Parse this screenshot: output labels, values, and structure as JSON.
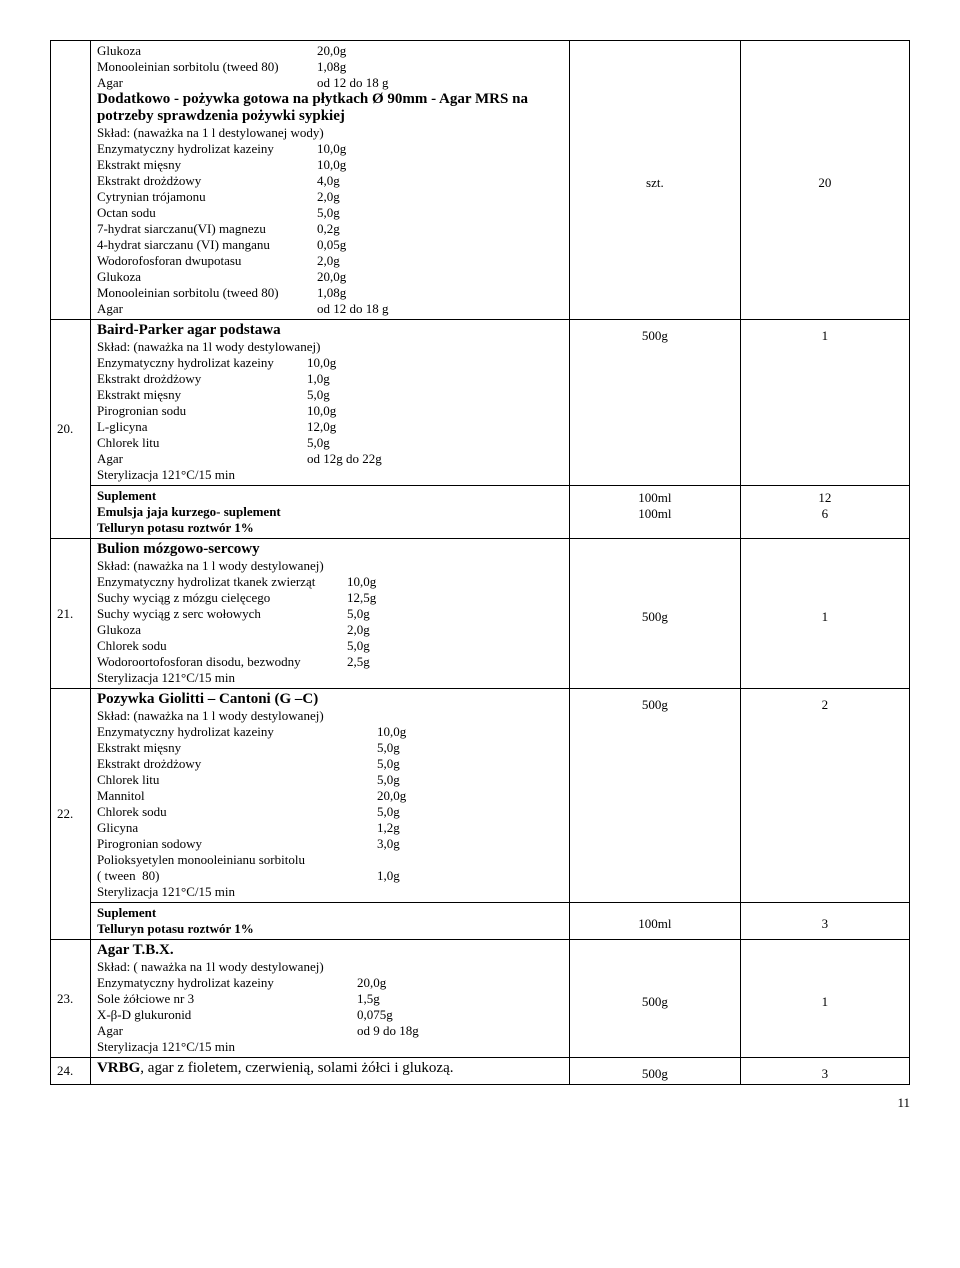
{
  "row_top": {
    "lines": [
      [
        "Glukoza",
        "20,0g"
      ],
      [
        "Monooleinian sorbitolu (tweed 80)",
        "1,08g"
      ],
      [
        "Agar",
        "od 12 do 18 g"
      ]
    ],
    "title": "Dodatkowo - pożywka gotowa na płytkach Ø 90mm - Agar MRS na potrzeby sprawdzenia pożywki sypkiej",
    "sub": "Skład: (naważka  na 1 l destylowanej wody)",
    "lines2": [
      [
        "Enzymatyczny hydrolizat kazeiny",
        "10,0g"
      ],
      [
        "Ekstrakt mięsny",
        "10,0g"
      ],
      [
        "Ekstrakt drożdżowy",
        "4,0g"
      ],
      [
        "Cytrynian trójamonu",
        "2,0g"
      ],
      [
        "Octan sodu",
        "5,0g"
      ],
      [
        "7-hydrat siarczanu(VI) magnezu",
        "0,2g"
      ],
      [
        "4-hydrat siarczanu (VI) manganu",
        "0,05g"
      ],
      [
        "Wodorofosforan dwupotasu",
        "2,0g"
      ],
      [
        "Glukoza",
        "20,0g"
      ],
      [
        "Monooleinian sorbitolu (tweed 80)",
        "1,08g"
      ],
      [
        "Agar",
        "od 12 do 18 g"
      ]
    ],
    "q1": "szt.",
    "q2": "20"
  },
  "r20": {
    "num": "20.",
    "title": "Baird-Parker agar podstawa",
    "sub": "Skład: (naważka na 1l wody destylowanej)",
    "lines": [
      [
        "Enzymatyczny hydrolizat kazeiny",
        "10,0g"
      ],
      [
        "Ekstrakt drożdżowy",
        "1,0g"
      ],
      [
        "Ekstrakt mięsny",
        "5,0g"
      ],
      [
        "Pirogronian sodu",
        "10,0g"
      ],
      [
        "L-glicyna",
        "12,0g"
      ],
      [
        "Chlorek litu",
        "5,0g"
      ],
      [
        "Agar",
        "od 12g do 22g"
      ]
    ],
    "extra": "Sterylizacja 121°C/15 min",
    "q1": "500g",
    "q2": "1",
    "supp_title": "Suplement",
    "supp_lines": [
      "Emulsja jaja kurzego- suplement",
      "Telluryn potasu roztwór 1%"
    ],
    "supp_q1a": "100ml",
    "supp_q1b": "100ml",
    "supp_q2a": "12",
    "supp_q2b": "6"
  },
  "r21": {
    "num": "21.",
    "title": "Bulion mózgowo-sercowy",
    "sub": "Skład: (naważka na 1 l wody destylowanej)",
    "lines": [
      [
        "Enzymatyczny hydrolizat tkanek zwierząt",
        "10,0g"
      ],
      [
        "Suchy wyciąg z mózgu cielęcego",
        "12,5g"
      ],
      [
        "Suchy wyciąg z serc wołowych",
        "5,0g"
      ],
      [
        "Glukoza",
        "2,0g"
      ],
      [
        "Chlorek sodu",
        "5,0g"
      ],
      [
        "Wodoroortofosforan disodu, bezwodny",
        "2,5g"
      ]
    ],
    "extra": " Sterylizacja 121°C/15 min",
    "q1": "500g",
    "q2": "1"
  },
  "r22": {
    "num": "22.",
    "title": "Pozywka Giolitti – Cantoni (G –C)",
    "sub": "Skład: (naważka na 1 l wody destylowanej)",
    "lines": [
      [
        "Enzymatyczny hydrolizat kazeiny",
        "10,0g"
      ],
      [
        "Ekstrakt mięsny",
        "5,0g"
      ],
      [
        "Ekstrakt drożdżowy",
        "5,0g"
      ],
      [
        "Chlorek litu",
        "5,0g"
      ],
      [
        "Mannitol",
        "20,0g"
      ],
      [
        "Chlorek sodu",
        "5,0g"
      ],
      [
        "Glicyna",
        "1,2g"
      ],
      [
        "Pirogronian sodowy",
        "3,0g"
      ]
    ],
    "tail1": "Polioksyetylen monooleinianu sorbitolu",
    "tail2_label": "( tween  80)",
    "tail2_value": "1,0g",
    "extra": "Sterylizacja 121°C/15 min",
    "q1": "500g",
    "q2": "2",
    "supp_title": "Suplement",
    "supp_line": "Telluryn  potasu roztwór 1%",
    "supp_q1": "100ml",
    "supp_q2": "3"
  },
  "r23": {
    "num": "23.",
    "title": "Agar T.B.X.",
    "sub": "Skład: ( naważka na 1l wody destylowanej)",
    "lines": [
      [
        "Enzymatyczny hydrolizat kazeiny",
        "20,0g"
      ],
      [
        "Sole żółciowe nr 3",
        "1,5g"
      ],
      [
        "X-β-D glukuronid",
        "0,075g"
      ],
      [
        "Agar",
        "od 9 do 18g"
      ]
    ],
    "extra": "Sterylizacja 121°C/15 min",
    "q1": "500g",
    "q2": "1"
  },
  "r24": {
    "num": "24.",
    "title_plain": "VRBG",
    "title_rest": ", agar z fioletem, czerwienią, solami żółci i glukozą.",
    "q1": "500g",
    "q2": "3"
  },
  "page": "11"
}
